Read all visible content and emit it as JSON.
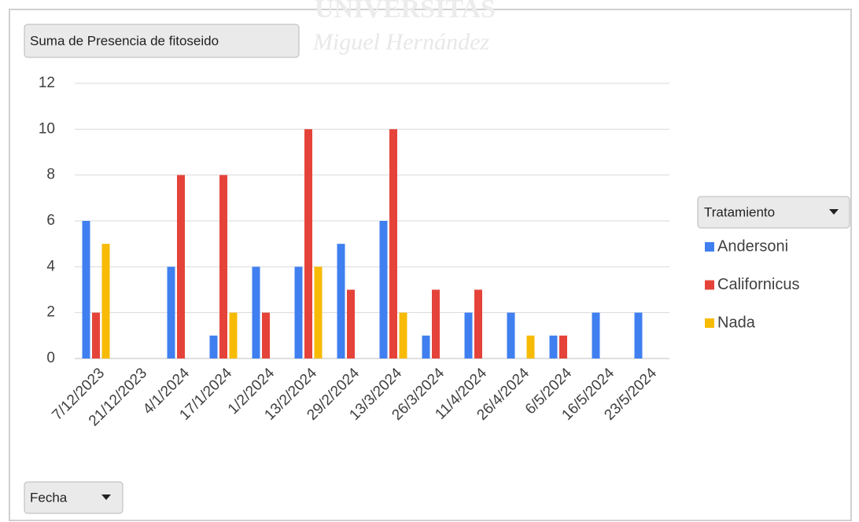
{
  "chart_data": {
    "type": "bar",
    "watermark": [
      "UNIVERSITAS",
      "Miguel Hernández"
    ],
    "value_field": "Suma de Presencia de fitoseido",
    "axis_field": "Fecha",
    "legend_title": "Tratamiento",
    "legend_position": "right",
    "categories": [
      "7/12/2023",
      "21/12/2023",
      "4/1/2024",
      "17/1/2024",
      "1/2/2024",
      "13/2/2024",
      "29/2/2024",
      "13/3/2024",
      "26/3/2024",
      "11/4/2024",
      "26/4/2024",
      "6/5/2024",
      "16/5/2024",
      "23/5/2024"
    ],
    "series": [
      {
        "name": "Andersoni",
        "color": "#3f7ff0",
        "values": [
          6,
          null,
          4,
          1,
          4,
          4,
          5,
          6,
          1,
          2,
          2,
          1,
          2,
          2
        ]
      },
      {
        "name": "Californicus",
        "color": "#e5433a",
        "values": [
          2,
          null,
          8,
          8,
          2,
          10,
          3,
          10,
          3,
          3,
          null,
          1,
          null,
          null
        ]
      },
      {
        "name": "Nada",
        "color": "#f7bb06",
        "values": [
          5,
          null,
          null,
          2,
          null,
          4,
          null,
          2,
          null,
          null,
          1,
          null,
          null,
          null
        ]
      }
    ],
    "ylim": [
      0,
      12
    ],
    "yticks": [
      0,
      2,
      4,
      6,
      8,
      10,
      12
    ],
    "grid": true
  }
}
